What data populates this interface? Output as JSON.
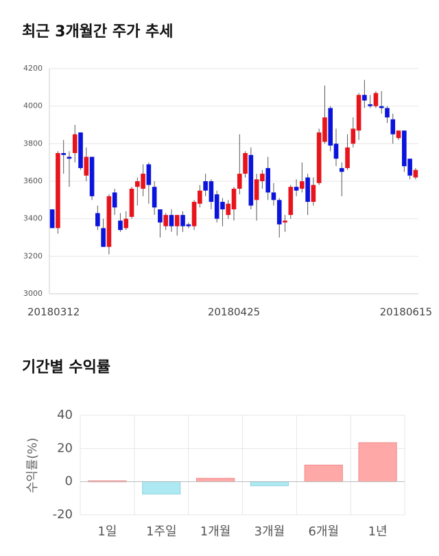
{
  "chart_data": [
    {
      "type": "candlestick",
      "title": "최근 3개월간 주가 추세",
      "categories": [
        "20180312",
        null,
        null,
        null,
        null,
        null,
        null,
        null,
        null,
        null,
        null,
        null,
        null,
        null,
        null,
        null,
        null,
        null,
        null,
        null,
        null,
        null,
        null,
        null,
        null,
        null,
        null,
        null,
        null,
        null,
        null,
        null,
        "20180425",
        null,
        null,
        null,
        null,
        null,
        null,
        null,
        null,
        null,
        null,
        null,
        null,
        null,
        null,
        null,
        null,
        null,
        null,
        null,
        null,
        null,
        null,
        null,
        null,
        null,
        null,
        null,
        null,
        null,
        null,
        null,
        "20180615"
      ],
      "open": [
        3450,
        3350,
        3750,
        3730,
        3750,
        3860,
        3630,
        3730,
        3430,
        3350,
        3250,
        3540,
        3390,
        3350,
        3410,
        3570,
        3560,
        3690,
        3570,
        3450,
        3360,
        3420,
        3360,
        3420,
        3370,
        3360,
        3480,
        3600,
        3600,
        3530,
        3490,
        3420,
        3450,
        3560,
        3640,
        3740,
        3500,
        3600,
        3670,
        3540,
        3500,
        3380,
        3420,
        3570,
        3560,
        3620,
        3490,
        3590,
        3810,
        3990,
        3800,
        3670,
        3670,
        3800,
        3870,
        4060,
        4010,
        4000,
        4000,
        3990,
        3930,
        3830,
        3870,
        3720,
        3620
      ],
      "high": [
        3450,
        3760,
        3820,
        3760,
        3900,
        3860,
        3780,
        3730,
        3470,
        3400,
        3530,
        3560,
        3430,
        3440,
        3570,
        3620,
        3690,
        3700,
        3600,
        3450,
        3430,
        3450,
        3420,
        3440,
        3380,
        3500,
        3580,
        3640,
        3610,
        3550,
        3510,
        3500,
        3570,
        3850,
        3760,
        3780,
        3640,
        3660,
        3730,
        3590,
        3510,
        3420,
        3580,
        3610,
        3700,
        3640,
        3620,
        3880,
        4110,
        4000,
        3880,
        3700,
        3850,
        3940,
        4070,
        4140,
        4060,
        4080,
        4080,
        4000,
        3960,
        3870,
        3870,
        3720,
        3670
      ],
      "low": [
        3350,
        3320,
        3640,
        3570,
        3700,
        3660,
        3600,
        3500,
        3340,
        3250,
        3210,
        3420,
        3330,
        3340,
        3400,
        3470,
        3520,
        3480,
        3420,
        3300,
        3340,
        3330,
        3310,
        3330,
        3350,
        3340,
        3460,
        3520,
        3450,
        3380,
        3360,
        3400,
        3390,
        3530,
        3620,
        3450,
        3390,
        3560,
        3500,
        3470,
        3300,
        3330,
        3400,
        3520,
        3540,
        3420,
        3470,
        3580,
        3800,
        3760,
        3680,
        3520,
        3660,
        3780,
        3820,
        3990,
        3990,
        3990,
        3960,
        3910,
        3800,
        3820,
        3650,
        3610,
        3610
      ],
      "close": [
        3350,
        3750,
        3740,
        3720,
        3850,
        3670,
        3730,
        3520,
        3360,
        3250,
        3520,
        3460,
        3340,
        3400,
        3560,
        3600,
        3640,
        3580,
        3460,
        3380,
        3420,
        3360,
        3420,
        3360,
        3360,
        3490,
        3550,
        3550,
        3490,
        3400,
        3450,
        3480,
        3560,
        3640,
        3750,
        3470,
        3610,
        3640,
        3540,
        3500,
        3370,
        3390,
        3570,
        3550,
        3600,
        3490,
        3580,
        3860,
        3940,
        3790,
        3720,
        3650,
        3780,
        3880,
        4060,
        4030,
        4000,
        4070,
        3990,
        3940,
        3850,
        3870,
        3680,
        3630,
        3660
      ],
      "up_color": "#e8141b",
      "down_color": "#0a14dc",
      "ylim": [
        3000,
        4200
      ],
      "yticks": [
        3000,
        3200,
        3400,
        3600,
        3800,
        4000,
        4200
      ],
      "grid": true
    },
    {
      "type": "bar",
      "title": "기간별 수익률",
      "ylabel": "수익률(%)",
      "categories": [
        "1일",
        "1주일",
        "1개월",
        "3개월",
        "6개월",
        "1년"
      ],
      "values": [
        0.5,
        -7.5,
        2,
        -2.5,
        10,
        23.5
      ],
      "positive_color": "#ffa8a8",
      "negative_color": "#aee8f2",
      "ylim": [
        -20,
        40
      ],
      "yticks": [
        -20,
        0,
        20,
        40
      ],
      "grid": true
    }
  ]
}
